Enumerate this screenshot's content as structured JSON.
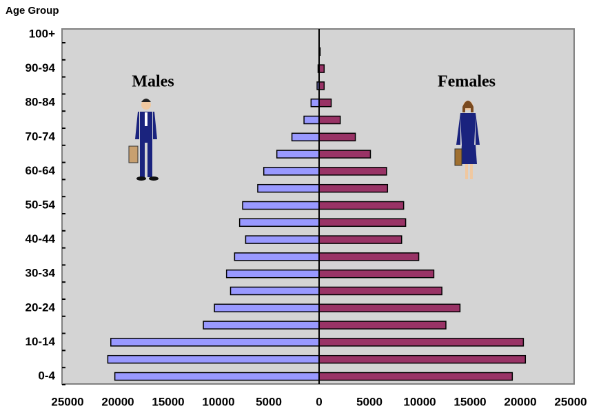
{
  "chart_data": {
    "type": "pyramid",
    "title": "Age Group",
    "categories": [
      "0-4",
      null,
      "10-14",
      null,
      "20-24",
      null,
      "30-34",
      null,
      "40-44",
      null,
      "50-54",
      null,
      "60-64",
      null,
      "70-74",
      null,
      "80-84",
      null,
      "90-94",
      null,
      "100+"
    ],
    "series": [
      {
        "name": "Males",
        "color": "#9999ff",
        "side": "left",
        "values": [
          20300,
          21000,
          20700,
          11500,
          10400,
          8800,
          9200,
          8400,
          7300,
          7900,
          7600,
          6100,
          5500,
          4200,
          2700,
          1500,
          800,
          200,
          100,
          0,
          0
        ]
      },
      {
        "name": "Females",
        "color": "#993366",
        "side": "right",
        "values": [
          19200,
          20500,
          20300,
          12600,
          14000,
          12200,
          11400,
          9900,
          8200,
          8600,
          8400,
          6800,
          6700,
          5100,
          3600,
          2100,
          1200,
          500,
          500,
          100,
          0
        ]
      }
    ],
    "xlim": [
      -25000,
      25000
    ],
    "xticks": [
      {
        "value": -25000,
        "label": "25000"
      },
      {
        "value": -20000,
        "label": "20000"
      },
      {
        "value": -15000,
        "label": "15000"
      },
      {
        "value": -10000,
        "label": "10000"
      },
      {
        "value": -5000,
        "label": "5000"
      },
      0,
      5000,
      10000,
      15000,
      20000,
      25000
    ]
  }
}
